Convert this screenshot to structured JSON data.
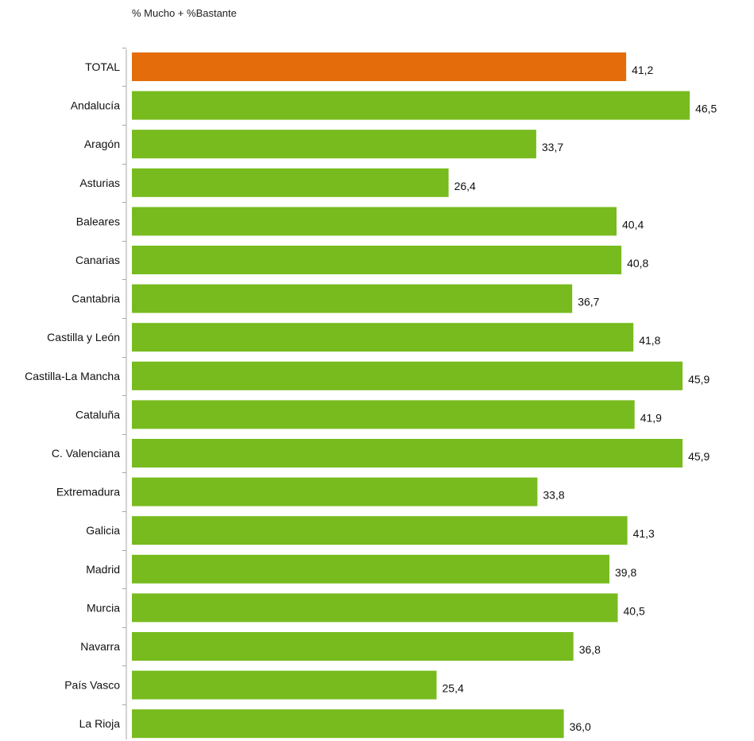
{
  "chart_data": {
    "type": "bar",
    "orientation": "horizontal",
    "subtitle": "% Mucho + %Bastante",
    "categories": [
      "TOTAL",
      "Andalucía",
      "Aragón",
      "Asturias",
      "Baleares",
      "Canarias",
      "Cantabria",
      "Castilla y León",
      "Castilla-La Mancha",
      "Cataluña",
      "C. Valenciana",
      "Extremadura",
      "Galicia",
      "Madrid",
      "Murcia",
      "Navarra",
      "País Vasco",
      "La Rioja"
    ],
    "values": [
      41.2,
      46.5,
      33.7,
      26.4,
      40.4,
      40.8,
      36.7,
      41.8,
      45.9,
      41.9,
      45.9,
      33.8,
      41.3,
      39.8,
      40.5,
      36.8,
      25.4,
      36.0
    ],
    "value_labels": [
      "41,2",
      "46,5",
      "33,7",
      "26,4",
      "40,4",
      "40,8",
      "36,7",
      "41,8",
      "45,9",
      "41,9",
      "45,9",
      "33,8",
      "41,3",
      "39,8",
      "40,5",
      "36,8",
      "25,4",
      "36,0"
    ],
    "highlight_index": 0,
    "colors": {
      "highlight": "#E46C0A",
      "bar": "#77BB1E",
      "axis": "#A6A6A6"
    },
    "grid": false,
    "legend": "none"
  }
}
